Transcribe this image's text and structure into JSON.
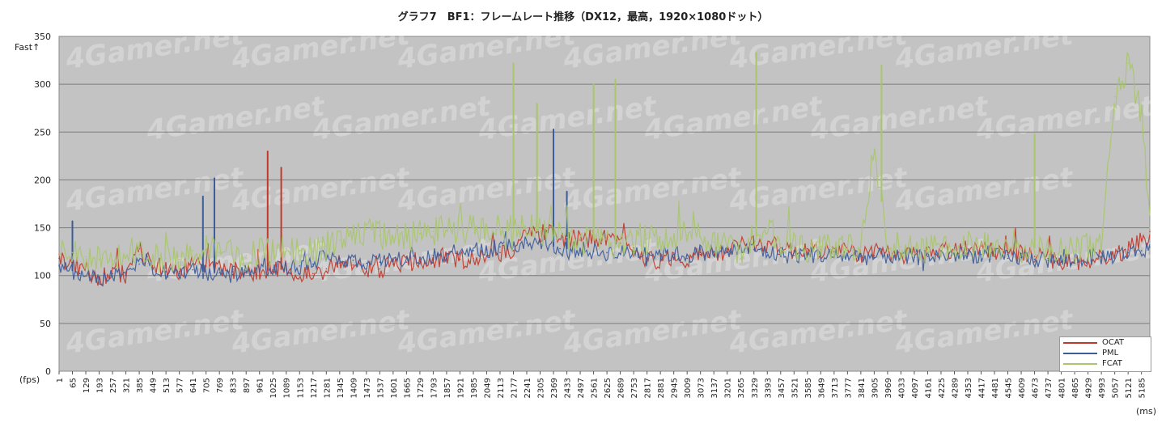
{
  "chart_data": {
    "type": "line",
    "title": "グラフ7　BF1：フレームレート推移（DX12，最高，1920×1080ドット）",
    "annotation_top": "Fast↑",
    "ylabel": "(fps)",
    "xlabel": "(ms)",
    "ylim": [
      0,
      350
    ],
    "yticks": [
      0,
      50,
      100,
      150,
      200,
      250,
      300,
      350
    ],
    "xticks": [
      "1",
      "65",
      "129",
      "193",
      "257",
      "321",
      "385",
      "449",
      "513",
      "577",
      "641",
      "705",
      "769",
      "833",
      "897",
      "961",
      "1025",
      "1089",
      "1153",
      "1217",
      "1281",
      "1345",
      "1409",
      "1473",
      "1537",
      "1601",
      "1665",
      "1729",
      "1793",
      "1857",
      "1921",
      "1985",
      "2049",
      "2113",
      "2177",
      "2241",
      "2305",
      "2369",
      "2433",
      "2497",
      "2561",
      "2625",
      "2689",
      "2753",
      "2817",
      "2881",
      "2945",
      "3009",
      "3073",
      "3137",
      "3201",
      "3265",
      "3329",
      "3393",
      "3457",
      "3521",
      "3585",
      "3649",
      "3713",
      "3777",
      "3841",
      "3905",
      "3969",
      "4033",
      "4097",
      "4161",
      "4225",
      "4289",
      "4353",
      "4417",
      "4481",
      "4545",
      "4609",
      "4673",
      "4737",
      "4801",
      "4865",
      "4929",
      "4993",
      "5057",
      "5121",
      "5185"
    ],
    "x_range": [
      1,
      5225
    ],
    "grid": true,
    "legend_position": "bottom-right",
    "watermark": "4Gamer.net",
    "series": [
      {
        "name": "OCAT",
        "color": "#c0392b",
        "points": [
          [
            1,
            118
          ],
          [
            100,
            108
          ],
          [
            193,
            98
          ],
          [
            257,
            102
          ],
          [
            321,
            101
          ],
          [
            385,
            128
          ],
          [
            449,
            110
          ],
          [
            513,
            108
          ],
          [
            577,
            104
          ],
          [
            641,
            115
          ],
          [
            705,
            110
          ],
          [
            769,
            108
          ],
          [
            833,
            104
          ],
          [
            897,
            105
          ],
          [
            961,
            104
          ],
          [
            1000,
            230
          ],
          [
            1025,
            106
          ],
          [
            1065,
            213
          ],
          [
            1089,
            106
          ],
          [
            1153,
            101
          ],
          [
            1217,
            102
          ],
          [
            1281,
            107
          ],
          [
            1345,
            113
          ],
          [
            1409,
            111
          ],
          [
            1473,
            107
          ],
          [
            1537,
            107
          ],
          [
            1601,
            112
          ],
          [
            1665,
            114
          ],
          [
            1729,
            115
          ],
          [
            1793,
            117
          ],
          [
            1857,
            118
          ],
          [
            1921,
            117
          ],
          [
            1985,
            118
          ],
          [
            2049,
            121
          ],
          [
            2113,
            124
          ],
          [
            2177,
            126
          ],
          [
            2241,
            142
          ],
          [
            2305,
            145
          ],
          [
            2369,
            144
          ],
          [
            2433,
            139
          ],
          [
            2497,
            137
          ],
          [
            2561,
            140
          ],
          [
            2625,
            138
          ],
          [
            2689,
            134
          ],
          [
            2753,
            129
          ],
          [
            2817,
            118
          ],
          [
            2881,
            115
          ],
          [
            2945,
            119
          ],
          [
            3009,
            118
          ],
          [
            3073,
            122
          ],
          [
            3137,
            121
          ],
          [
            3201,
            125
          ],
          [
            3265,
            132
          ],
          [
            3329,
            135
          ],
          [
            3393,
            133
          ],
          [
            3457,
            129
          ],
          [
            3521,
            126
          ],
          [
            3585,
            128
          ],
          [
            3649,
            127
          ],
          [
            3713,
            125
          ],
          [
            3777,
            126
          ],
          [
            3841,
            123
          ],
          [
            3905,
            121
          ],
          [
            3969,
            122
          ],
          [
            4033,
            121
          ],
          [
            4097,
            122
          ],
          [
            4161,
            124
          ],
          [
            4225,
            126
          ],
          [
            4289,
            127
          ],
          [
            4353,
            128
          ],
          [
            4417,
            131
          ],
          [
            4481,
            126
          ],
          [
            4545,
            122
          ],
          [
            4609,
            123
          ],
          [
            4673,
            120
          ],
          [
            4737,
            118
          ],
          [
            4801,
            114
          ],
          [
            4865,
            113
          ],
          [
            4929,
            116
          ],
          [
            4993,
            119
          ],
          [
            5057,
            121
          ],
          [
            5121,
            127
          ],
          [
            5185,
            138
          ],
          [
            5225,
            146
          ]
        ]
      },
      {
        "name": "PML",
        "color": "#3b5b9a",
        "points": [
          [
            1,
            110
          ],
          [
            65,
            157
          ],
          [
            100,
            102
          ],
          [
            193,
            96
          ],
          [
            257,
            99
          ],
          [
            321,
            100
          ],
          [
            385,
            112
          ],
          [
            449,
            106
          ],
          [
            513,
            104
          ],
          [
            577,
            102
          ],
          [
            641,
            106
          ],
          [
            690,
            183
          ],
          [
            720,
            103
          ],
          [
            745,
            202
          ],
          [
            769,
            103
          ],
          [
            833,
            101
          ],
          [
            897,
            104
          ],
          [
            961,
            104
          ],
          [
            1025,
            106
          ],
          [
            1089,
            108
          ],
          [
            1153,
            110
          ],
          [
            1217,
            112
          ],
          [
            1281,
            121
          ],
          [
            1345,
            118
          ],
          [
            1409,
            116
          ],
          [
            1473,
            113
          ],
          [
            1537,
            114
          ],
          [
            1601,
            115
          ],
          [
            1665,
            118
          ],
          [
            1729,
            119
          ],
          [
            1793,
            121
          ],
          [
            1857,
            123
          ],
          [
            1921,
            124
          ],
          [
            1985,
            126
          ],
          [
            2049,
            127
          ],
          [
            2113,
            130
          ],
          [
            2177,
            132
          ],
          [
            2241,
            134
          ],
          [
            2305,
            135
          ],
          [
            2369,
            253
          ],
          [
            2400,
            128
          ],
          [
            2433,
            188
          ],
          [
            2497,
            127
          ],
          [
            2561,
            125
          ],
          [
            2625,
            124
          ],
          [
            2689,
            123
          ],
          [
            2753,
            125
          ],
          [
            2817,
            124
          ],
          [
            2881,
            123
          ],
          [
            2945,
            122
          ],
          [
            3009,
            121
          ],
          [
            3073,
            124
          ],
          [
            3137,
            125
          ],
          [
            3201,
            124
          ],
          [
            3265,
            128
          ],
          [
            3329,
            127
          ],
          [
            3393,
            124
          ],
          [
            3457,
            122
          ],
          [
            3521,
            121
          ],
          [
            3585,
            122
          ],
          [
            3649,
            121
          ],
          [
            3713,
            120
          ],
          [
            3777,
            121
          ],
          [
            3841,
            120
          ],
          [
            3905,
            119
          ],
          [
            3969,
            121
          ],
          [
            4033,
            118
          ],
          [
            4097,
            119
          ],
          [
            4161,
            120
          ],
          [
            4225,
            121
          ],
          [
            4289,
            122
          ],
          [
            4353,
            121
          ],
          [
            4417,
            122
          ],
          [
            4481,
            120
          ],
          [
            4545,
            118
          ],
          [
            4609,
            119
          ],
          [
            4673,
            117
          ],
          [
            4737,
            116
          ],
          [
            4801,
            115
          ],
          [
            4865,
            117
          ],
          [
            4929,
            119
          ],
          [
            4993,
            120
          ],
          [
            5057,
            121
          ],
          [
            5121,
            124
          ],
          [
            5185,
            126
          ],
          [
            5225,
            130
          ]
        ]
      },
      {
        "name": "FCAT",
        "color": "#a9c66a",
        "points": [
          [
            1,
            121
          ],
          [
            65,
            124
          ],
          [
            129,
            120
          ],
          [
            193,
            117
          ],
          [
            257,
            116
          ],
          [
            321,
            118
          ],
          [
            385,
            122
          ],
          [
            449,
            120
          ],
          [
            513,
            118
          ],
          [
            577,
            117
          ],
          [
            641,
            126
          ],
          [
            705,
            127
          ],
          [
            769,
            124
          ],
          [
            833,
            123
          ],
          [
            897,
            121
          ],
          [
            961,
            125
          ],
          [
            1025,
            126
          ],
          [
            1089,
            128
          ],
          [
            1153,
            126
          ],
          [
            1217,
            125
          ],
          [
            1281,
            131
          ],
          [
            1345,
            137
          ],
          [
            1409,
            145
          ],
          [
            1473,
            148
          ],
          [
            1537,
            142
          ],
          [
            1601,
            140
          ],
          [
            1665,
            141
          ],
          [
            1729,
            144
          ],
          [
            1793,
            146
          ],
          [
            1857,
            147
          ],
          [
            1921,
            148
          ],
          [
            1985,
            150
          ],
          [
            2049,
            151
          ],
          [
            2113,
            150
          ],
          [
            2177,
            322
          ],
          [
            2200,
            152
          ],
          [
            2241,
            150
          ],
          [
            2290,
            280
          ],
          [
            2305,
            145
          ],
          [
            2369,
            142
          ],
          [
            2433,
            140
          ],
          [
            2497,
            138
          ],
          [
            2561,
            300
          ],
          [
            2600,
            135
          ],
          [
            2665,
            305
          ],
          [
            2689,
            133
          ],
          [
            2753,
            132
          ],
          [
            2817,
            138
          ],
          [
            2881,
            140
          ],
          [
            2945,
            141
          ],
          [
            3009,
            142
          ],
          [
            3073,
            140
          ],
          [
            3137,
            135
          ],
          [
            3201,
            129
          ],
          [
            3265,
            128
          ],
          [
            3340,
            333
          ],
          [
            3393,
            150
          ],
          [
            3457,
            133
          ],
          [
            3521,
            131
          ],
          [
            3585,
            130
          ],
          [
            3649,
            130
          ],
          [
            3713,
            129
          ],
          [
            3777,
            128
          ],
          [
            3841,
            130
          ],
          [
            3905,
            232
          ],
          [
            3940,
            320
          ],
          [
            3969,
            132
          ],
          [
            4033,
            130
          ],
          [
            4097,
            129
          ],
          [
            4161,
            130
          ],
          [
            4225,
            130
          ],
          [
            4289,
            131
          ],
          [
            4353,
            132
          ],
          [
            4417,
            133
          ],
          [
            4481,
            129
          ],
          [
            4545,
            127
          ],
          [
            4609,
            128
          ],
          [
            4673,
            248
          ],
          [
            4737,
            129
          ],
          [
            4801,
            125
          ],
          [
            4865,
            126
          ],
          [
            4929,
            129
          ],
          [
            4993,
            131
          ],
          [
            5057,
            287
          ],
          [
            5121,
            322
          ],
          [
            5185,
            270
          ],
          [
            5225,
            150
          ]
        ]
      }
    ]
  }
}
